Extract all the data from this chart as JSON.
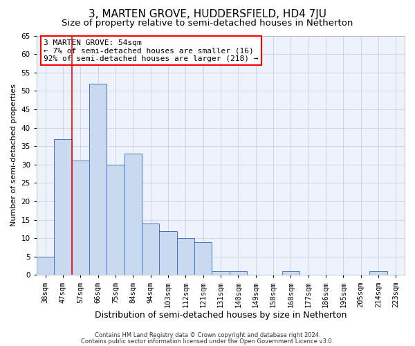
{
  "title": "3, MARTEN GROVE, HUDDERSFIELD, HD4 7JU",
  "subtitle": "Size of property relative to semi-detached houses in Netherton",
  "xlabel": "Distribution of semi-detached houses by size in Netherton",
  "ylabel": "Number of semi-detached properties",
  "categories": [
    "38sqm",
    "47sqm",
    "57sqm",
    "66sqm",
    "75sqm",
    "84sqm",
    "94sqm",
    "103sqm",
    "112sqm",
    "121sqm",
    "131sqm",
    "140sqm",
    "149sqm",
    "158sqm",
    "168sqm",
    "177sqm",
    "186sqm",
    "195sqm",
    "205sqm",
    "214sqm",
    "223sqm"
  ],
  "values": [
    5,
    37,
    31,
    52,
    30,
    33,
    14,
    12,
    10,
    9,
    1,
    1,
    0,
    0,
    1,
    0,
    0,
    0,
    0,
    1,
    0
  ],
  "bar_color": "#c9daf0",
  "bar_edge_color": "#4472c4",
  "ylim": [
    0,
    65
  ],
  "yticks": [
    0,
    5,
    10,
    15,
    20,
    25,
    30,
    35,
    40,
    45,
    50,
    55,
    60,
    65
  ],
  "vline_x": 1.5,
  "annotation_title": "3 MARTEN GROVE: 54sqm",
  "annotation_line1": "← 7% of semi-detached houses are smaller (16)",
  "annotation_line2": "92% of semi-detached houses are larger (218) →",
  "footer_line1": "Contains HM Land Registry data © Crown copyright and database right 2024.",
  "footer_line2": "Contains public sector information licensed under the Open Government Licence v3.0.",
  "bg_color": "#eef2fa",
  "title_fontsize": 11,
  "subtitle_fontsize": 9.5,
  "ylabel_fontsize": 8,
  "xlabel_fontsize": 9,
  "tick_fontsize": 7.5,
  "annotation_fontsize": 8,
  "footer_fontsize": 6
}
